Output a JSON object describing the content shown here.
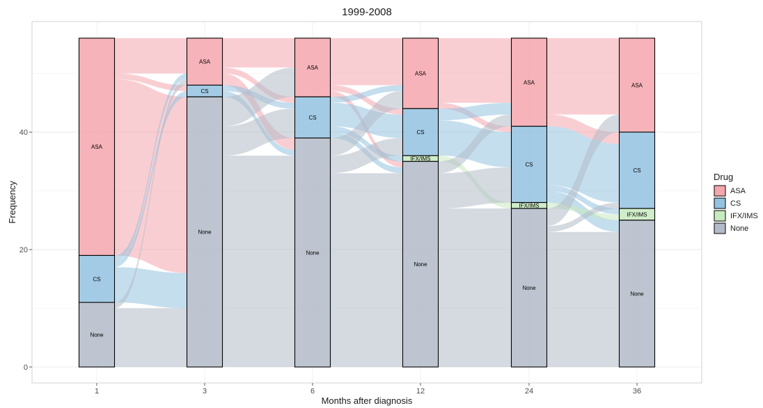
{
  "chart_data": {
    "type": "alluvial",
    "title": "1999-2008",
    "xlabel": "Months after diagnosis",
    "ylabel": "Frequency",
    "x": [
      "1",
      "3",
      "6",
      "12",
      "24",
      "36"
    ],
    "ylim": [
      0,
      58
    ],
    "yticks": [
      0,
      20,
      40
    ],
    "legend": {
      "title": "Drug",
      "position": "right",
      "entries": [
        "ASA",
        "CS",
        "IFX/IMS",
        "None"
      ]
    },
    "colors": {
      "ASA": "#f4a6ad",
      "CS": "#94c2e0",
      "IFX/IMS": "#c8eac0",
      "None": "#b3bbc8"
    },
    "strata": [
      {
        "x": "1",
        "counts": [
          {
            "drug": "ASA",
            "value": 37,
            "label": "ASA"
          },
          {
            "drug": "CS",
            "value": 8,
            "label": "CS"
          },
          {
            "drug": "None",
            "value": 11,
            "label": "None"
          }
        ]
      },
      {
        "x": "3",
        "counts": [
          {
            "drug": "ASA",
            "value": 8,
            "label": "ASA"
          },
          {
            "drug": "CS",
            "value": 2,
            "label": "CS"
          },
          {
            "drug": "None",
            "value": 46,
            "label": "None"
          }
        ]
      },
      {
        "x": "6",
        "counts": [
          {
            "drug": "ASA",
            "value": 10,
            "label": "ASA"
          },
          {
            "drug": "CS",
            "value": 7,
            "label": "CS"
          },
          {
            "drug": "None",
            "value": 39,
            "label": "None"
          }
        ]
      },
      {
        "x": "12",
        "counts": [
          {
            "drug": "ASA",
            "value": 12,
            "label": "ASA"
          },
          {
            "drug": "CS",
            "value": 8,
            "label": "CS"
          },
          {
            "drug": "IFX/IMS",
            "value": 1,
            "label": "IFX/IMS"
          },
          {
            "drug": "None",
            "value": 35,
            "label": "None"
          }
        ]
      },
      {
        "x": "24",
        "counts": [
          {
            "drug": "ASA",
            "value": 15,
            "label": "ASA"
          },
          {
            "drug": "CS",
            "value": 13,
            "label": "CS"
          },
          {
            "drug": "IFX/IMS",
            "value": 1,
            "label": "IFX/IMS"
          },
          {
            "drug": "None",
            "value": 27,
            "label": "None"
          }
        ]
      },
      {
        "x": "36",
        "counts": [
          {
            "drug": "ASA",
            "value": 16,
            "label": "ASA"
          },
          {
            "drug": "CS",
            "value": 13,
            "label": "CS"
          },
          {
            "drug": "IFX/IMS",
            "value": 2,
            "label": "IFX/IMS"
          },
          {
            "drug": "None",
            "value": 25,
            "label": "None"
          }
        ]
      }
    ],
    "flows": [
      [
        {
          "from": "ASA",
          "to": "ASA",
          "value": 6
        },
        {
          "from": "ASA",
          "to": "CS",
          "value": 1
        },
        {
          "from": "ASA",
          "to": "None",
          "value": 30
        },
        {
          "from": "CS",
          "to": "ASA",
          "value": 1
        },
        {
          "from": "CS",
          "to": "CS",
          "value": 1
        },
        {
          "from": "CS",
          "to": "None",
          "value": 6
        },
        {
          "from": "None",
          "to": "ASA",
          "value": 1
        },
        {
          "from": "None",
          "to": "None",
          "value": 10
        }
      ],
      [
        {
          "from": "ASA",
          "to": "ASA",
          "value": 5
        },
        {
          "from": "ASA",
          "to": "CS",
          "value": 1
        },
        {
          "from": "ASA",
          "to": "None",
          "value": 2
        },
        {
          "from": "CS",
          "to": "CS",
          "value": 1
        },
        {
          "from": "CS",
          "to": "None",
          "value": 1
        },
        {
          "from": "None",
          "to": "ASA",
          "value": 5
        },
        {
          "from": "None",
          "to": "CS",
          "value": 5
        },
        {
          "from": "None",
          "to": "None",
          "value": 36
        }
      ],
      [
        {
          "from": "ASA",
          "to": "ASA",
          "value": 8
        },
        {
          "from": "ASA",
          "to": "CS",
          "value": 1
        },
        {
          "from": "ASA",
          "to": "None",
          "value": 1
        },
        {
          "from": "CS",
          "to": "ASA",
          "value": 1
        },
        {
          "from": "CS",
          "to": "CS",
          "value": 4
        },
        {
          "from": "CS",
          "to": "IFX/IMS",
          "value": 1
        },
        {
          "from": "CS",
          "to": "None",
          "value": 1
        },
        {
          "from": "None",
          "to": "ASA",
          "value": 3
        },
        {
          "from": "None",
          "to": "CS",
          "value": 3
        },
        {
          "from": "None",
          "to": "None",
          "value": 33
        }
      ],
      [
        {
          "from": "ASA",
          "to": "ASA",
          "value": 11
        },
        {
          "from": "ASA",
          "to": "CS",
          "value": 1
        },
        {
          "from": "CS",
          "to": "ASA",
          "value": 2
        },
        {
          "from": "CS",
          "to": "CS",
          "value": 6
        },
        {
          "from": "IFX/IMS",
          "to": "IFX/IMS",
          "value": 1
        },
        {
          "from": "None",
          "to": "ASA",
          "value": 2
        },
        {
          "from": "None",
          "to": "CS",
          "value": 6
        },
        {
          "from": "None",
          "to": "None",
          "value": 27
        }
      ],
      [
        {
          "from": "ASA",
          "to": "ASA",
          "value": 13
        },
        {
          "from": "ASA",
          "to": "CS",
          "value": 2
        },
        {
          "from": "CS",
          "to": "CS",
          "value": 10
        },
        {
          "from": "CS",
          "to": "IFX/IMS",
          "value": 1
        },
        {
          "from": "CS",
          "to": "None",
          "value": 2
        },
        {
          "from": "IFX/IMS",
          "to": "IFX/IMS",
          "value": 1
        },
        {
          "from": "None",
          "to": "ASA",
          "value": 3
        },
        {
          "from": "None",
          "to": "CS",
          "value": 1
        },
        {
          "from": "None",
          "to": "None",
          "value": 23
        }
      ]
    ]
  }
}
